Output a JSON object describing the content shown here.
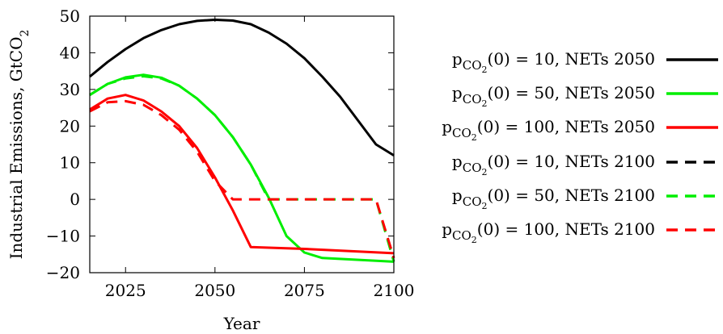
{
  "chart_data": {
    "type": "line",
    "title": "",
    "xlabel": "Year",
    "ylabel": "Industrial Emissions, GtCO",
    "ylabel_sub": "2",
    "xlim": [
      2015,
      2100
    ],
    "ylim": [
      -20,
      50
    ],
    "xticks": [
      2025,
      2050,
      2075,
      2100
    ],
    "yticks": [
      -20,
      -10,
      0,
      10,
      20,
      30,
      40,
      50
    ],
    "ytick_labels": [
      "−20",
      "−10",
      "0",
      "10",
      "20",
      "30",
      "40",
      "50"
    ],
    "grid": false,
    "legend_position": "right",
    "series": [
      {
        "name": "pCO2(0) = 10, NETs 2050",
        "legend": {
          "pre": "p",
          "sub": "CO",
          "subsub": "2",
          "post": "(0) = 10, NETs 2050"
        },
        "color": "#000000",
        "dash": "solid",
        "x": [
          2015,
          2020,
          2025,
          2030,
          2035,
          2040,
          2045,
          2050,
          2055,
          2060,
          2065,
          2070,
          2075,
          2080,
          2085,
          2090,
          2095,
          2100
        ],
        "y": [
          33.5,
          37.5,
          41,
          44,
          46.2,
          47.8,
          48.7,
          49,
          48.8,
          47.8,
          45.5,
          42.5,
          38.5,
          33.5,
          28,
          21.5,
          15,
          12
        ]
      },
      {
        "name": "pCO2(0) = 50, NETs 2050",
        "legend": {
          "pre": "p",
          "sub": "CO",
          "subsub": "2",
          "post": "(0) = 50, NETs 2050"
        },
        "color": "#00ee00",
        "dash": "solid",
        "x": [
          2015,
          2020,
          2025,
          2030,
          2035,
          2040,
          2045,
          2050,
          2055,
          2060,
          2065,
          2070,
          2075,
          2080,
          2100
        ],
        "y": [
          28.5,
          31.5,
          33.3,
          34,
          33.2,
          31,
          27.5,
          23,
          17,
          9.5,
          0.5,
          -10,
          -14.5,
          -16,
          -17
        ]
      },
      {
        "name": "pCO2(0) = 100, NETs 2050",
        "legend": {
          "pre": "p",
          "sub": "CO",
          "subsub": "2",
          "post": "(0) = 100, NETs 2050"
        },
        "color": "#ff0000",
        "dash": "solid",
        "x": [
          2015,
          2020,
          2025,
          2030,
          2035,
          2040,
          2045,
          2050,
          2055,
          2060,
          2075,
          2100
        ],
        "y": [
          24.5,
          27.5,
          28.5,
          27,
          24,
          20,
          14,
          6,
          -3,
          -13,
          -13.5,
          -14.7
        ]
      },
      {
        "name": "pCO2(0) = 10, NETs 2100",
        "legend": {
          "pre": "p",
          "sub": "CO",
          "subsub": "2",
          "post": "(0) = 10, NETs 2100"
        },
        "color": "#000000",
        "dash": "dashed",
        "x": [],
        "y": []
      },
      {
        "name": "pCO2(0) = 50, NETs 2100",
        "legend": {
          "pre": "p",
          "sub": "CO",
          "subsub": "2",
          "post": "(0) = 50, NETs 2100"
        },
        "color": "#00ee00",
        "dash": "dashed",
        "x": [
          2015,
          2020,
          2025,
          2030,
          2035,
          2040,
          2045,
          2050,
          2055,
          2060,
          2065,
          2070,
          2075,
          2080,
          2085,
          2090,
          2095,
          2100
        ],
        "y": [
          28.5,
          31.5,
          33,
          33.6,
          33,
          31,
          27.5,
          23,
          17,
          9.5,
          0,
          0,
          0,
          0,
          0,
          0,
          0,
          -17
        ]
      },
      {
        "name": "pCO2(0) = 100, NETs 2100",
        "legend": {
          "pre": "p",
          "sub": "CO",
          "subsub": "2",
          "post": "(0) = 100, NETs 2100"
        },
        "color": "#ff0000",
        "dash": "dashed",
        "x": [
          2015,
          2020,
          2025,
          2030,
          2035,
          2040,
          2045,
          2050,
          2055,
          2060,
          2065,
          2070,
          2075,
          2080,
          2085,
          2090,
          2095,
          2100
        ],
        "y": [
          24,
          26.5,
          26.8,
          25.8,
          23,
          19,
          13,
          5,
          0,
          0,
          0,
          0,
          0,
          0,
          0,
          0,
          0,
          -16
        ]
      }
    ]
  }
}
